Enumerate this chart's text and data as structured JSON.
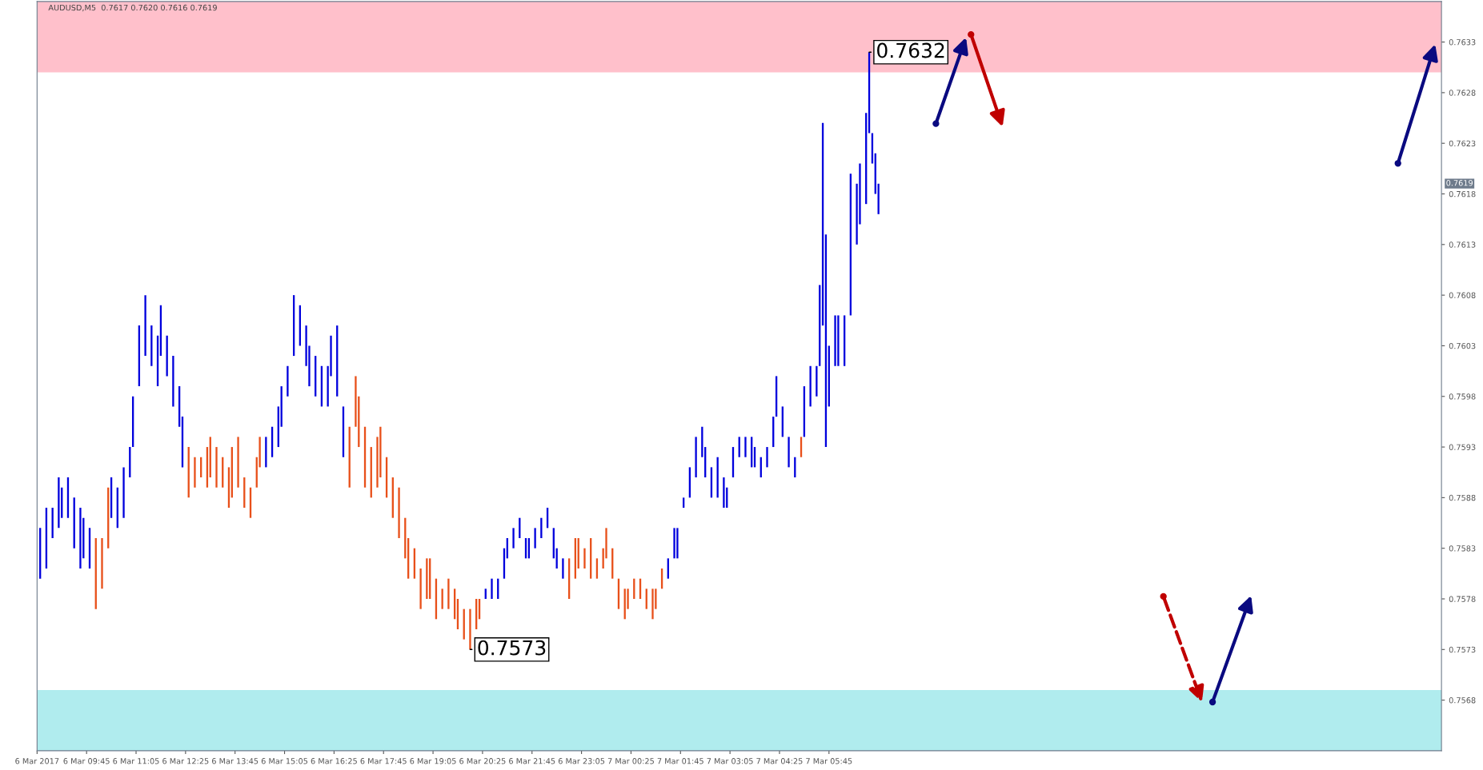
{
  "chart_data": {
    "type": "bar",
    "title": "AUDUSD,M5  0.7617 0.7620 0.7616 0.7619",
    "series": [
      {
        "color": "#0000dd",
        "x": [
          "2017-03-06T08:30",
          "2017-03-06T08:40",
          "2017-03-06T08:50",
          "2017-03-06T09:00",
          "2017-03-06T09:05",
          "2017-03-06T09:15",
          "2017-03-06T09:25",
          "2017-03-06T09:35",
          "2017-03-06T09:40",
          "2017-03-06T09:50",
          "2017-03-06T10:25",
          "2017-03-06T10:35",
          "2017-03-06T10:45",
          "2017-03-06T10:55",
          "2017-03-06T11:00",
          "2017-03-06T11:10",
          "2017-03-06T11:20",
          "2017-03-06T11:30",
          "2017-03-06T11:40",
          "2017-03-06T11:45",
          "2017-03-06T11:55",
          "2017-03-06T12:05",
          "2017-03-06T12:15",
          "2017-03-06T12:20",
          "2017-03-06T14:35",
          "2017-03-06T14:45",
          "2017-03-06T14:55",
          "2017-03-06T15:00",
          "2017-03-06T15:10",
          "2017-03-06T15:20",
          "2017-03-06T15:30",
          "2017-03-06T15:40",
          "2017-03-06T15:45",
          "2017-03-06T15:55",
          "2017-03-06T16:05",
          "2017-03-06T16:15",
          "2017-03-06T16:20",
          "2017-03-06T16:30",
          "2017-03-06T16:40",
          "2017-03-06T20:30",
          "2017-03-06T20:40",
          "2017-03-06T20:50",
          "2017-03-06T21:00",
          "2017-03-06T21:05",
          "2017-03-06T21:15",
          "2017-03-06T21:25",
          "2017-03-06T21:35",
          "2017-03-06T21:40",
          "2017-03-06T21:50",
          "2017-03-06T22:00",
          "2017-03-06T22:10",
          "2017-03-06T22:20",
          "2017-03-06T22:25",
          "2017-03-06T22:35",
          "2017-03-07T01:25",
          "2017-03-07T01:35",
          "2017-03-07T01:40",
          "2017-03-07T01:50",
          "2017-03-07T02:00",
          "2017-03-07T02:10",
          "2017-03-07T02:20",
          "2017-03-07T02:25",
          "2017-03-07T02:35",
          "2017-03-07T02:45",
          "2017-03-07T02:55",
          "2017-03-07T03:00",
          "2017-03-07T03:10",
          "2017-03-07T03:20",
          "2017-03-07T03:30",
          "2017-03-07T03:40",
          "2017-03-07T03:45",
          "2017-03-07T03:55",
          "2017-03-07T04:05",
          "2017-03-07T04:15",
          "2017-03-07T04:20",
          "2017-03-07T04:30",
          "2017-03-07T04:40",
          "2017-03-07T04:50",
          "2017-03-07T05:05",
          "2017-03-07T05:15",
          "2017-03-07T05:25",
          "2017-03-07T05:30",
          "2017-03-07T05:35",
          "2017-03-07T05:40",
          "2017-03-07T05:45",
          "2017-03-07T05:55",
          "2017-03-07T06:00",
          "2017-03-07T06:10",
          "2017-03-07T06:20",
          "2017-03-07T06:30",
          "2017-03-07T06:35",
          "2017-03-07T06:45",
          "2017-03-07T06:50",
          "2017-03-07T06:55",
          "2017-03-07T07:00",
          "2017-03-07T07:05"
        ],
        "base": [
          0.758,
          0.7581,
          0.7584,
          0.7585,
          0.7586,
          0.7586,
          0.7583,
          0.7581,
          0.7582,
          0.7581,
          0.7586,
          0.7585,
          0.7586,
          0.759,
          0.7593,
          0.7599,
          0.7602,
          0.7601,
          0.7599,
          0.7602,
          0.76,
          0.7597,
          0.7595,
          0.7591,
          0.7591,
          0.7592,
          0.7593,
          0.7595,
          0.7598,
          0.7602,
          0.7603,
          0.7601,
          0.7599,
          0.7598,
          0.7597,
          0.7597,
          0.76,
          0.7598,
          0.7592,
          0.7578,
          0.7578,
          0.7578,
          0.758,
          0.7582,
          0.7583,
          0.7584,
          0.7582,
          0.7582,
          0.7583,
          0.7584,
          0.7585,
          0.7582,
          0.7581,
          0.758,
          0.758,
          0.7582,
          0.7582,
          0.7587,
          0.7588,
          0.759,
          0.7592,
          0.759,
          0.7588,
          0.7588,
          0.7587,
          0.7587,
          0.759,
          0.7592,
          0.7592,
          0.7591,
          0.7591,
          0.759,
          0.7591,
          0.7593,
          0.7596,
          0.7594,
          0.7591,
          0.759,
          0.7594,
          0.7597,
          0.7598,
          0.7601,
          0.7605,
          0.7593,
          0.7597,
          0.7601,
          0.7601,
          0.7601,
          0.7606,
          0.7613,
          0.7615,
          0.7617,
          0.7624,
          0.7621,
          0.7618,
          0.7616
        ],
        "values": [
          0.0005,
          0.0006,
          0.0003,
          0.0005,
          0.0003,
          0.0004,
          0.0005,
          0.0006,
          0.0004,
          0.0004,
          0.0004,
          0.0004,
          0.0005,
          0.0003,
          0.0005,
          0.0006,
          0.0006,
          0.0004,
          0.0005,
          0.0005,
          0.0004,
          0.0005,
          0.0004,
          0.0005,
          0.0003,
          0.0003,
          0.0004,
          0.0004,
          0.0003,
          0.0006,
          0.0004,
          0.0004,
          0.0004,
          0.0004,
          0.0004,
          0.0004,
          0.0004,
          0.0007,
          0.0005,
          0.0001,
          0.0002,
          0.0002,
          0.0003,
          0.0002,
          0.0002,
          0.0002,
          0.0002,
          0.0002,
          0.0002,
          0.0002,
          0.0002,
          0.0003,
          0.0002,
          0.0002,
          0.0002,
          0.0003,
          0.0003,
          0.0001,
          0.0003,
          0.0004,
          0.0003,
          0.0003,
          0.0003,
          0.0004,
          0.0003,
          0.0002,
          0.0003,
          0.0002,
          0.0002,
          0.0003,
          0.0002,
          0.0002,
          0.0002,
          0.0003,
          0.0004,
          0.0003,
          0.0003,
          0.0002,
          0.0005,
          0.0004,
          0.0003,
          0.0008,
          0.002,
          0.0021,
          0.0006,
          0.0005,
          0.0005,
          0.0005,
          0.0014,
          0.0006,
          0.0006,
          0.0009,
          0.0008,
          0.0003,
          0.0004,
          0.0003
        ]
      },
      {
        "color": "#e8501a",
        "x": [
          "2017-03-06T10:00",
          "2017-03-06T10:10",
          "2017-03-06T10:20",
          "2017-03-06T12:30",
          "2017-03-06T12:40",
          "2017-03-06T12:50",
          "2017-03-06T13:00",
          "2017-03-06T13:05",
          "2017-03-06T13:15",
          "2017-03-06T13:25",
          "2017-03-06T13:35",
          "2017-03-06T13:40",
          "2017-03-06T13:50",
          "2017-03-06T14:00",
          "2017-03-06T14:10",
          "2017-03-06T14:20",
          "2017-03-06T14:25",
          "2017-03-06T16:50",
          "2017-03-06T17:00",
          "2017-03-06T17:05",
          "2017-03-06T17:15",
          "2017-03-06T17:25",
          "2017-03-06T17:35",
          "2017-03-06T17:40",
          "2017-03-06T17:50",
          "2017-03-06T18:00",
          "2017-03-06T18:10",
          "2017-03-06T18:20",
          "2017-03-06T18:25",
          "2017-03-06T18:35",
          "2017-03-06T18:45",
          "2017-03-06T18:55",
          "2017-03-06T19:00",
          "2017-03-06T19:10",
          "2017-03-06T19:20",
          "2017-03-06T19:30",
          "2017-03-06T19:40",
          "2017-03-06T19:45",
          "2017-03-06T19:55",
          "2017-03-06T20:05",
          "2017-03-06T20:15",
          "2017-03-06T20:20",
          "2017-03-06T22:45",
          "2017-03-06T22:55",
          "2017-03-06T23:00",
          "2017-03-06T23:10",
          "2017-03-06T23:20",
          "2017-03-06T23:30",
          "2017-03-06T23:40",
          "2017-03-06T23:45",
          "2017-03-06T23:55",
          "2017-03-07T00:05",
          "2017-03-07T00:15",
          "2017-03-07T00:20",
          "2017-03-07T00:30",
          "2017-03-07T00:40",
          "2017-03-07T00:50",
          "2017-03-07T01:00",
          "2017-03-07T01:05",
          "2017-03-07T01:15",
          "2017-03-07T05:00"
        ],
        "base": [
          0.7577,
          0.7579,
          0.7583,
          0.7588,
          0.7589,
          0.759,
          0.7589,
          0.759,
          0.7589,
          0.7589,
          0.7587,
          0.7588,
          0.7589,
          0.7587,
          0.7586,
          0.7589,
          0.7591,
          0.7589,
          0.7595,
          0.7593,
          0.7589,
          0.7588,
          0.7589,
          0.759,
          0.7588,
          0.7586,
          0.7584,
          0.7582,
          0.758,
          0.758,
          0.7577,
          0.7578,
          0.7578,
          0.7576,
          0.7577,
          0.7577,
          0.7576,
          0.7575,
          0.7574,
          0.7573,
          0.7575,
          0.7576,
          0.7578,
          0.758,
          0.7581,
          0.7581,
          0.758,
          0.758,
          0.7581,
          0.7582,
          0.758,
          0.7577,
          0.7576,
          0.7577,
          0.7578,
          0.7578,
          0.7577,
          0.7576,
          0.7577,
          0.7579,
          0.7592
        ],
        "values": [
          0.0007,
          0.0005,
          0.0006,
          0.0005,
          0.0003,
          0.0002,
          0.0004,
          0.0004,
          0.0004,
          0.0003,
          0.0004,
          0.0005,
          0.0005,
          0.0003,
          0.0003,
          0.0003,
          0.0003,
          0.0006,
          0.0005,
          0.0005,
          0.0006,
          0.0005,
          0.0005,
          0.0005,
          0.0004,
          0.0004,
          0.0005,
          0.0004,
          0.0004,
          0.0003,
          0.0004,
          0.0004,
          0.0004,
          0.0004,
          0.0002,
          0.0003,
          0.0003,
          0.0003,
          0.0003,
          0.0004,
          0.0003,
          0.0002,
          0.0004,
          0.0004,
          0.0003,
          0.0002,
          0.0004,
          0.0002,
          0.0002,
          0.0003,
          0.0003,
          0.0003,
          0.0003,
          0.0002,
          0.0002,
          0.0002,
          0.0002,
          0.0003,
          0.0002,
          0.0002,
          0.0002
        ]
      }
    ],
    "xlim": [
      "2017-03-06T08:25",
      "2017-03-07T22:15"
    ],
    "xticks": [
      {
        "value": "2017-03-06T08:25",
        "label": "6 Mar 2017"
      },
      {
        "value": "2017-03-06T09:45",
        "label": "6 Mar 09:45"
      },
      {
        "value": "2017-03-06T11:05",
        "label": "6 Mar 11:05"
      },
      {
        "value": "2017-03-06T12:25",
        "label": "6 Mar 12:25"
      },
      {
        "value": "2017-03-06T13:45",
        "label": "6 Mar 13:45"
      },
      {
        "value": "2017-03-06T15:05",
        "label": "6 Mar 15:05"
      },
      {
        "value": "2017-03-06T16:25",
        "label": "6 Mar 16:25"
      },
      {
        "value": "2017-03-06T17:45",
        "label": "6 Mar 17:45"
      },
      {
        "value": "2017-03-06T19:05",
        "label": "6 Mar 19:05"
      },
      {
        "value": "2017-03-06T20:25",
        "label": "6 Mar 20:25"
      },
      {
        "value": "2017-03-06T21:45",
        "label": "6 Mar 21:45"
      },
      {
        "value": "2017-03-06T23:05",
        "label": "6 Mar 23:05"
      },
      {
        "value": "2017-03-07T00:25",
        "label": "7 Mar 00:25"
      },
      {
        "value": "2017-03-07T01:45",
        "label": "7 Mar 01:45"
      },
      {
        "value": "2017-03-07T03:05",
        "label": "7 Mar 03:05"
      },
      {
        "value": "2017-03-07T04:25",
        "label": "7 Mar 04:25"
      },
      {
        "value": "2017-03-07T05:45",
        "label": "7 Mar 05:45"
      }
    ],
    "ylim": [
      0.7563,
      0.7637
    ],
    "yticks": [
      0.7568,
      0.7573,
      0.7578,
      0.7583,
      0.7588,
      0.7593,
      0.7598,
      0.7603,
      0.7608,
      0.7613,
      0.7618,
      0.7623,
      0.7628,
      0.7633
    ],
    "bands": [
      {
        "axis": "y",
        "from": 0.763,
        "to": 0.7637,
        "color": "#ffc0cb"
      },
      {
        "axis": "y",
        "from": 0.7563,
        "to": 0.7569,
        "color": "#b0ecee"
      }
    ],
    "annotations": [
      {
        "text": "0.7632",
        "x": "2017-03-07T06:50",
        "y": 0.7632
      },
      {
        "text": "0.7573",
        "x": "2017-03-06T20:05",
        "y": 0.7573
      },
      "0.7619"
    ],
    "grid": false,
    "legend": false
  }
}
